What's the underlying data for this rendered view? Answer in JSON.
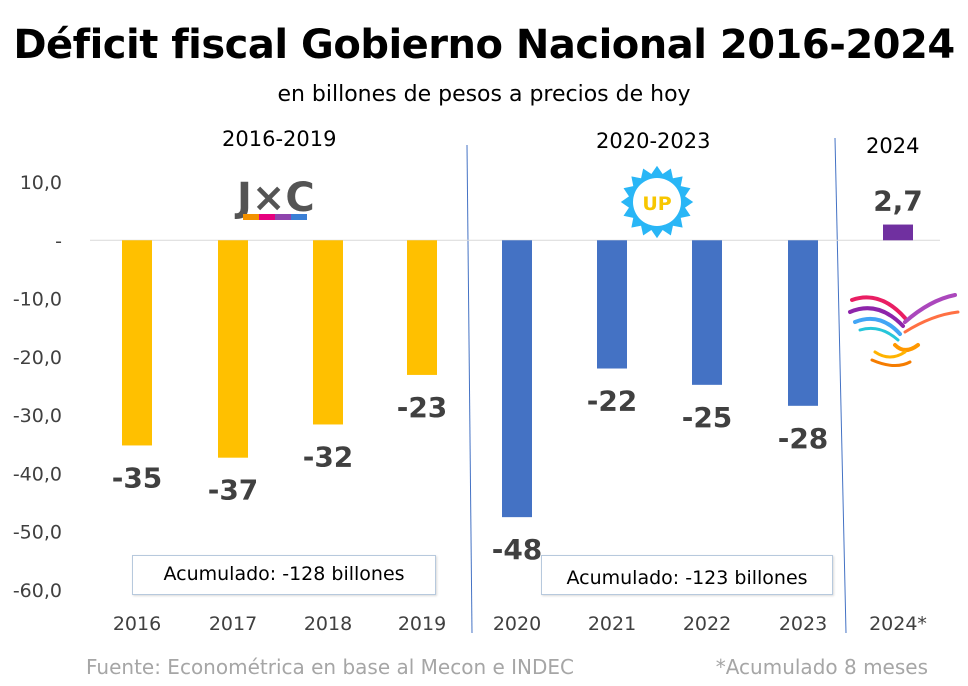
{
  "title": "Déficit fiscal Gobierno Nacional 2016-2024",
  "subtitle": "en billones de pesos a precios de hoy",
  "periods": [
    "2016-2019",
    "2020-2023",
    "2024"
  ],
  "logos": {
    "jxc": "J×C",
    "up": "UP"
  },
  "accumulated": [
    "Acumulado: -128 billones",
    "Acumulado: -123 billones"
  ],
  "source": "Fuente: Econométrica en base al Mecon e INDEC",
  "note": "*Acumulado 8 meses",
  "colors": {
    "jxc": "#ffc000",
    "up": "#4472c4",
    "lla": "#7030a0",
    "axis_text": "#404040",
    "label_text": "#404040"
  },
  "chart_data": {
    "type": "bar",
    "categories": [
      "2016",
      "2017",
      "2018",
      "2019",
      "2020",
      "2021",
      "2022",
      "2023",
      "2024*"
    ],
    "values": [
      -35.2,
      -37.3,
      -31.6,
      -23.1,
      -47.5,
      -22.0,
      -24.8,
      -28.4,
      2.7
    ],
    "data_labels": [
      "-35",
      "-37",
      "-32",
      "-23",
      "-48",
      "-22",
      "-25",
      "-28",
      "2,7"
    ],
    "ylim": [
      -60,
      10
    ],
    "yticks": [
      10,
      0,
      -10,
      -20,
      -30,
      -40,
      -50,
      -60
    ],
    "ytick_labels": [
      "10,0",
      "-",
      "-10,0",
      "-20,0",
      "-30,0",
      "-40,0",
      "-50,0",
      "-60,0"
    ],
    "grid": false
  }
}
